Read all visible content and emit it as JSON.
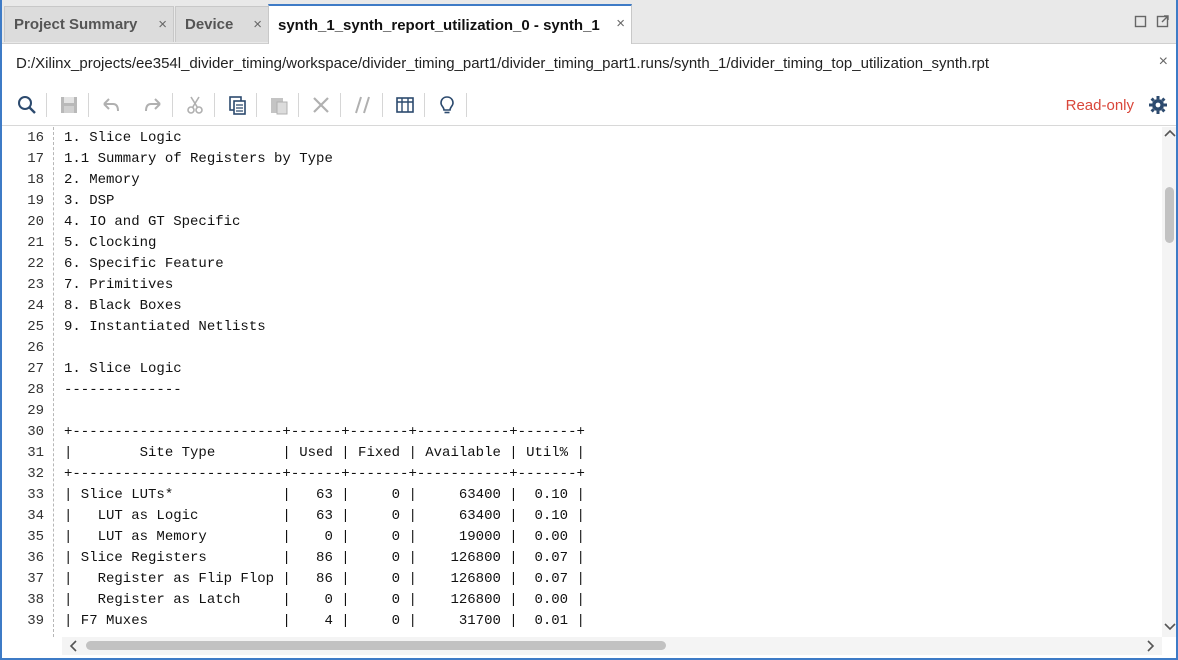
{
  "tabs": [
    {
      "label": "Project Summary",
      "active": false
    },
    {
      "label": "Device",
      "active": false
    },
    {
      "label": "synth_1_synth_report_utilization_0 - synth_1",
      "active": true
    }
  ],
  "tab_close": "×",
  "path": "D:/Xilinx_projects/ee354l_divider_timing/workspace/divider_timing_part1/divider_timing_part1.runs/synth_1/divider_timing_top_utilization_synth.rpt",
  "path_close": "×",
  "toolbar": {
    "icons": [
      "search-icon",
      "save-icon",
      "undo-icon",
      "redo-icon",
      "cut-icon",
      "copy-icon",
      "paste-icon",
      "delete-icon",
      "comment-icon",
      "columns-icon",
      "lightbulb-icon"
    ],
    "readonly_label": "Read-only"
  },
  "lines": [
    {
      "n": "16",
      "text": "1. Slice Logic"
    },
    {
      "n": "17",
      "text": "1.1 Summary of Registers by Type"
    },
    {
      "n": "18",
      "text": "2. Memory"
    },
    {
      "n": "19",
      "text": "3. DSP"
    },
    {
      "n": "20",
      "text": "4. IO and GT Specific"
    },
    {
      "n": "21",
      "text": "5. Clocking"
    },
    {
      "n": "22",
      "text": "6. Specific Feature"
    },
    {
      "n": "23",
      "text": "7. Primitives"
    },
    {
      "n": "24",
      "text": "8. Black Boxes"
    },
    {
      "n": "25",
      "text": "9. Instantiated Netlists"
    },
    {
      "n": "26",
      "text": ""
    },
    {
      "n": "27",
      "text": "1. Slice Logic"
    },
    {
      "n": "28",
      "text": "--------------"
    },
    {
      "n": "29",
      "text": ""
    },
    {
      "n": "30",
      "text": "+-------------------------+------+-------+-----------+-------+"
    },
    {
      "n": "31",
      "text": "|        Site Type        | Used | Fixed | Available | Util% |"
    },
    {
      "n": "32",
      "text": "+-------------------------+------+-------+-----------+-------+"
    },
    {
      "n": "33",
      "text": "| Slice LUTs*             |   63 |     0 |     63400 |  0.10 |"
    },
    {
      "n": "34",
      "text": "|   LUT as Logic          |   63 |     0 |     63400 |  0.10 |"
    },
    {
      "n": "35",
      "text": "|   LUT as Memory         |    0 |     0 |     19000 |  0.00 |"
    },
    {
      "n": "36",
      "text": "| Slice Registers         |   86 |     0 |    126800 |  0.07 |"
    },
    {
      "n": "37",
      "text": "|   Register as Flip Flop |   86 |     0 |    126800 |  0.07 |"
    },
    {
      "n": "38",
      "text": "|   Register as Latch     |    0 |     0 |    126800 |  0.00 |"
    },
    {
      "n": "39",
      "text": "| F7 Muxes                |    4 |     0 |     31700 |  0.01 |"
    }
  ],
  "scroll": {
    "vertical_position": 0.12,
    "horizontal_position": 0.0
  }
}
